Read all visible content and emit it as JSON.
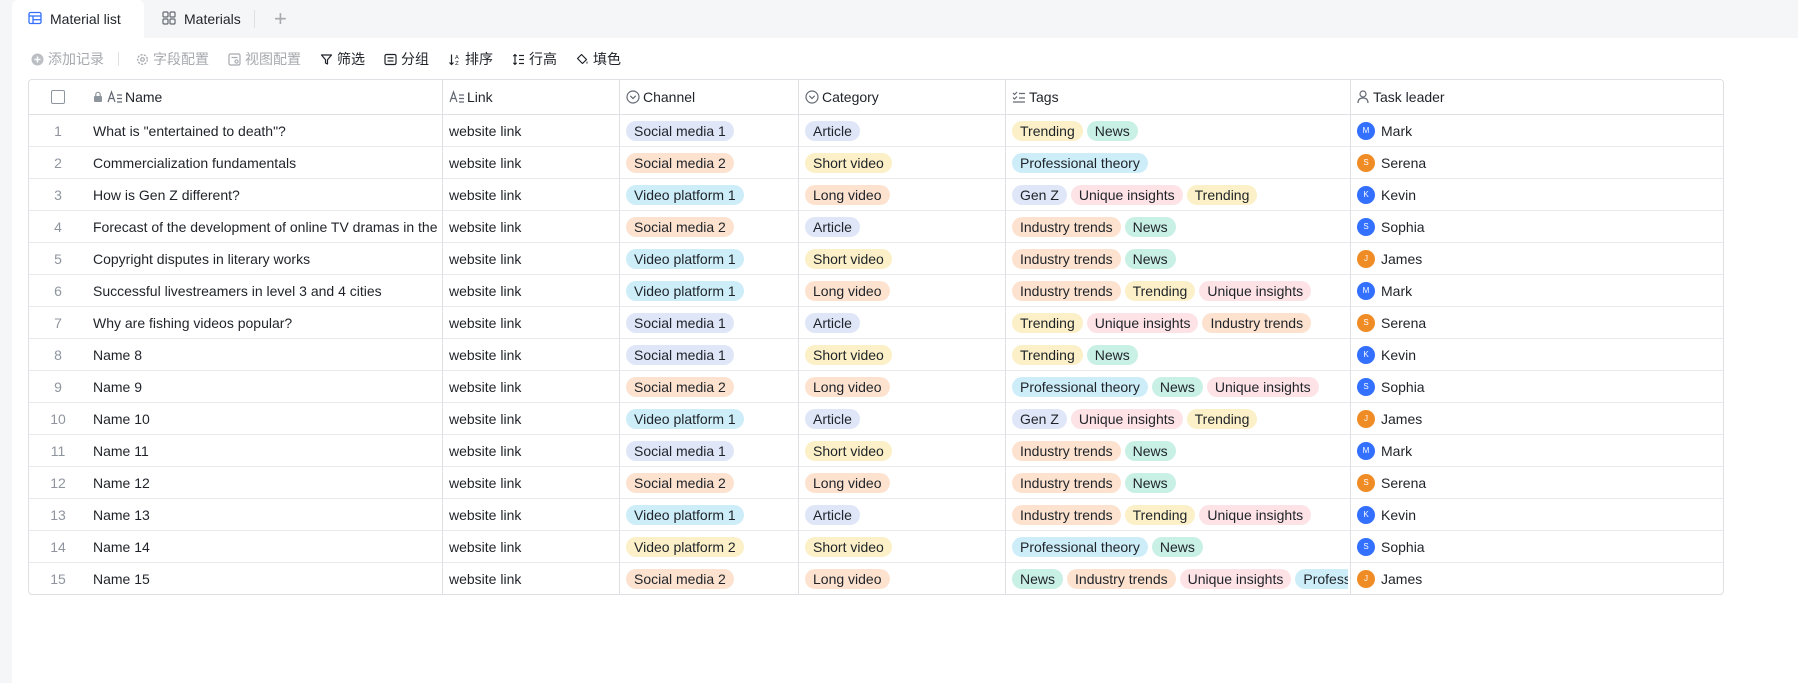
{
  "tabs": [
    {
      "label": "Material list",
      "icon": "table-icon",
      "active": true
    },
    {
      "label": "Materials",
      "icon": "grid-icon",
      "active": false
    }
  ],
  "toolbar": {
    "add_record": "添加记录",
    "field_config": "字段配置",
    "view_config": "视图配置",
    "filter": "筛选",
    "group": "分组",
    "sort": "排序",
    "row_height": "行高",
    "fill_color": "填色"
  },
  "columns": {
    "name": "Name",
    "link": "Link",
    "channel": "Channel",
    "category": "Category",
    "tags": "Tags",
    "task_leader": "Task leader"
  },
  "colors": {
    "Social media 1": "#dfe6f7",
    "Social media 2": "#fde3cf",
    "Video platform 1": "#cdeef8",
    "Video platform 2": "#fbf0c7",
    "Article": "#dfe6f7",
    "Short video": "#fbf0c7",
    "Long video": "#fde3cf",
    "Trending": "#fbf0c7",
    "News": "#c9f0e5",
    "Professional theory": "#cdeef8",
    "Gen Z": "#dfe6f7",
    "Unique insights": "#fde3e6",
    "Industry trends": "#fde3cf",
    "Professiona...": "#cdeef8",
    "avatar_blue": "#3370ff",
    "avatar_orange": "#f08c25"
  },
  "rows": [
    {
      "n": "1",
      "name": "What is \"entertained to death\"?",
      "link": "website link",
      "channel": "Social media 1",
      "category": "Article",
      "tags": [
        "Trending",
        "News"
      ],
      "leader": "Mark",
      "initial": "M",
      "avatar": "avatar_blue"
    },
    {
      "n": "2",
      "name": "Commercialization fundamentals",
      "link": "website link",
      "channel": "Social media 2",
      "category": "Short video",
      "tags": [
        "Professional theory"
      ],
      "leader": "Serena",
      "initial": "S",
      "avatar": "avatar_orange"
    },
    {
      "n": "3",
      "name": "How is Gen Z different?",
      "link": "website link",
      "channel": "Video platform 1",
      "category": "Long video",
      "tags": [
        "Gen Z",
        "Unique insights",
        "Trending"
      ],
      "leader": "Kevin",
      "initial": "K",
      "avatar": "avatar_blue"
    },
    {
      "n": "4",
      "name": "Forecast of the development of online TV dramas in the next fi...",
      "link": "website link",
      "channel": "Social media 2",
      "category": "Article",
      "tags": [
        "Industry trends",
        "News"
      ],
      "leader": "Sophia",
      "initial": "S",
      "avatar": "avatar_blue"
    },
    {
      "n": "5",
      "name": "Copyright disputes in literary works",
      "link": "website link",
      "channel": "Video platform 1",
      "category": "Short video",
      "tags": [
        "Industry trends",
        "News"
      ],
      "leader": "James",
      "initial": "J",
      "avatar": "avatar_orange"
    },
    {
      "n": "6",
      "name": "Successful livestreamers in level 3 and 4 cities",
      "link": "website link",
      "channel": "Video platform 1",
      "category": "Long video",
      "tags": [
        "Industry trends",
        "Trending",
        "Unique insights"
      ],
      "leader": "Mark",
      "initial": "M",
      "avatar": "avatar_blue"
    },
    {
      "n": "7",
      "name": "Why are fishing videos popular?",
      "link": "website link",
      "channel": "Social media 1",
      "category": "Article",
      "tags": [
        "Trending",
        "Unique insights",
        "Industry trends"
      ],
      "leader": "Serena",
      "initial": "S",
      "avatar": "avatar_orange"
    },
    {
      "n": "8",
      "name": "Name 8",
      "link": "website link",
      "channel": "Social media 1",
      "category": "Short video",
      "tags": [
        "Trending",
        "News"
      ],
      "leader": "Kevin",
      "initial": "K",
      "avatar": "avatar_blue"
    },
    {
      "n": "9",
      "name": "Name 9",
      "link": "website link",
      "channel": "Social media 2",
      "category": "Long video",
      "tags": [
        "Professional theory",
        "News",
        "Unique insights"
      ],
      "leader": "Sophia",
      "initial": "S",
      "avatar": "avatar_blue"
    },
    {
      "n": "10",
      "name": "Name 10",
      "link": "website link",
      "channel": "Video platform 1",
      "category": "Article",
      "tags": [
        "Gen Z",
        "Unique insights",
        "Trending"
      ],
      "leader": "James",
      "initial": "J",
      "avatar": "avatar_orange"
    },
    {
      "n": "11",
      "name": "Name 11",
      "link": "website link",
      "channel": "Social media 1",
      "category": "Short video",
      "tags": [
        "Industry trends",
        "News"
      ],
      "leader": "Mark",
      "initial": "M",
      "avatar": "avatar_blue"
    },
    {
      "n": "12",
      "name": "Name 12",
      "link": "website link",
      "channel": "Social media 2",
      "category": "Long video",
      "tags": [
        "Industry trends",
        "News"
      ],
      "leader": "Serena",
      "initial": "S",
      "avatar": "avatar_orange"
    },
    {
      "n": "13",
      "name": "Name 13",
      "link": "website link",
      "channel": "Video platform 1",
      "category": "Article",
      "tags": [
        "Industry trends",
        "Trending",
        "Unique insights"
      ],
      "leader": "Kevin",
      "initial": "K",
      "avatar": "avatar_blue"
    },
    {
      "n": "14",
      "name": "Name 14",
      "link": "website link",
      "channel": "Video platform 2",
      "category": "Short video",
      "tags": [
        "Professional theory",
        "News"
      ],
      "leader": "Sophia",
      "initial": "S",
      "avatar": "avatar_blue"
    },
    {
      "n": "15",
      "name": "Name 15",
      "link": "website link",
      "channel": "Social media 2",
      "category": "Long video",
      "tags": [
        "News",
        "Industry trends",
        "Unique insights",
        "Professiona..."
      ],
      "leader": "James",
      "initial": "J",
      "avatar": "avatar_orange"
    }
  ]
}
